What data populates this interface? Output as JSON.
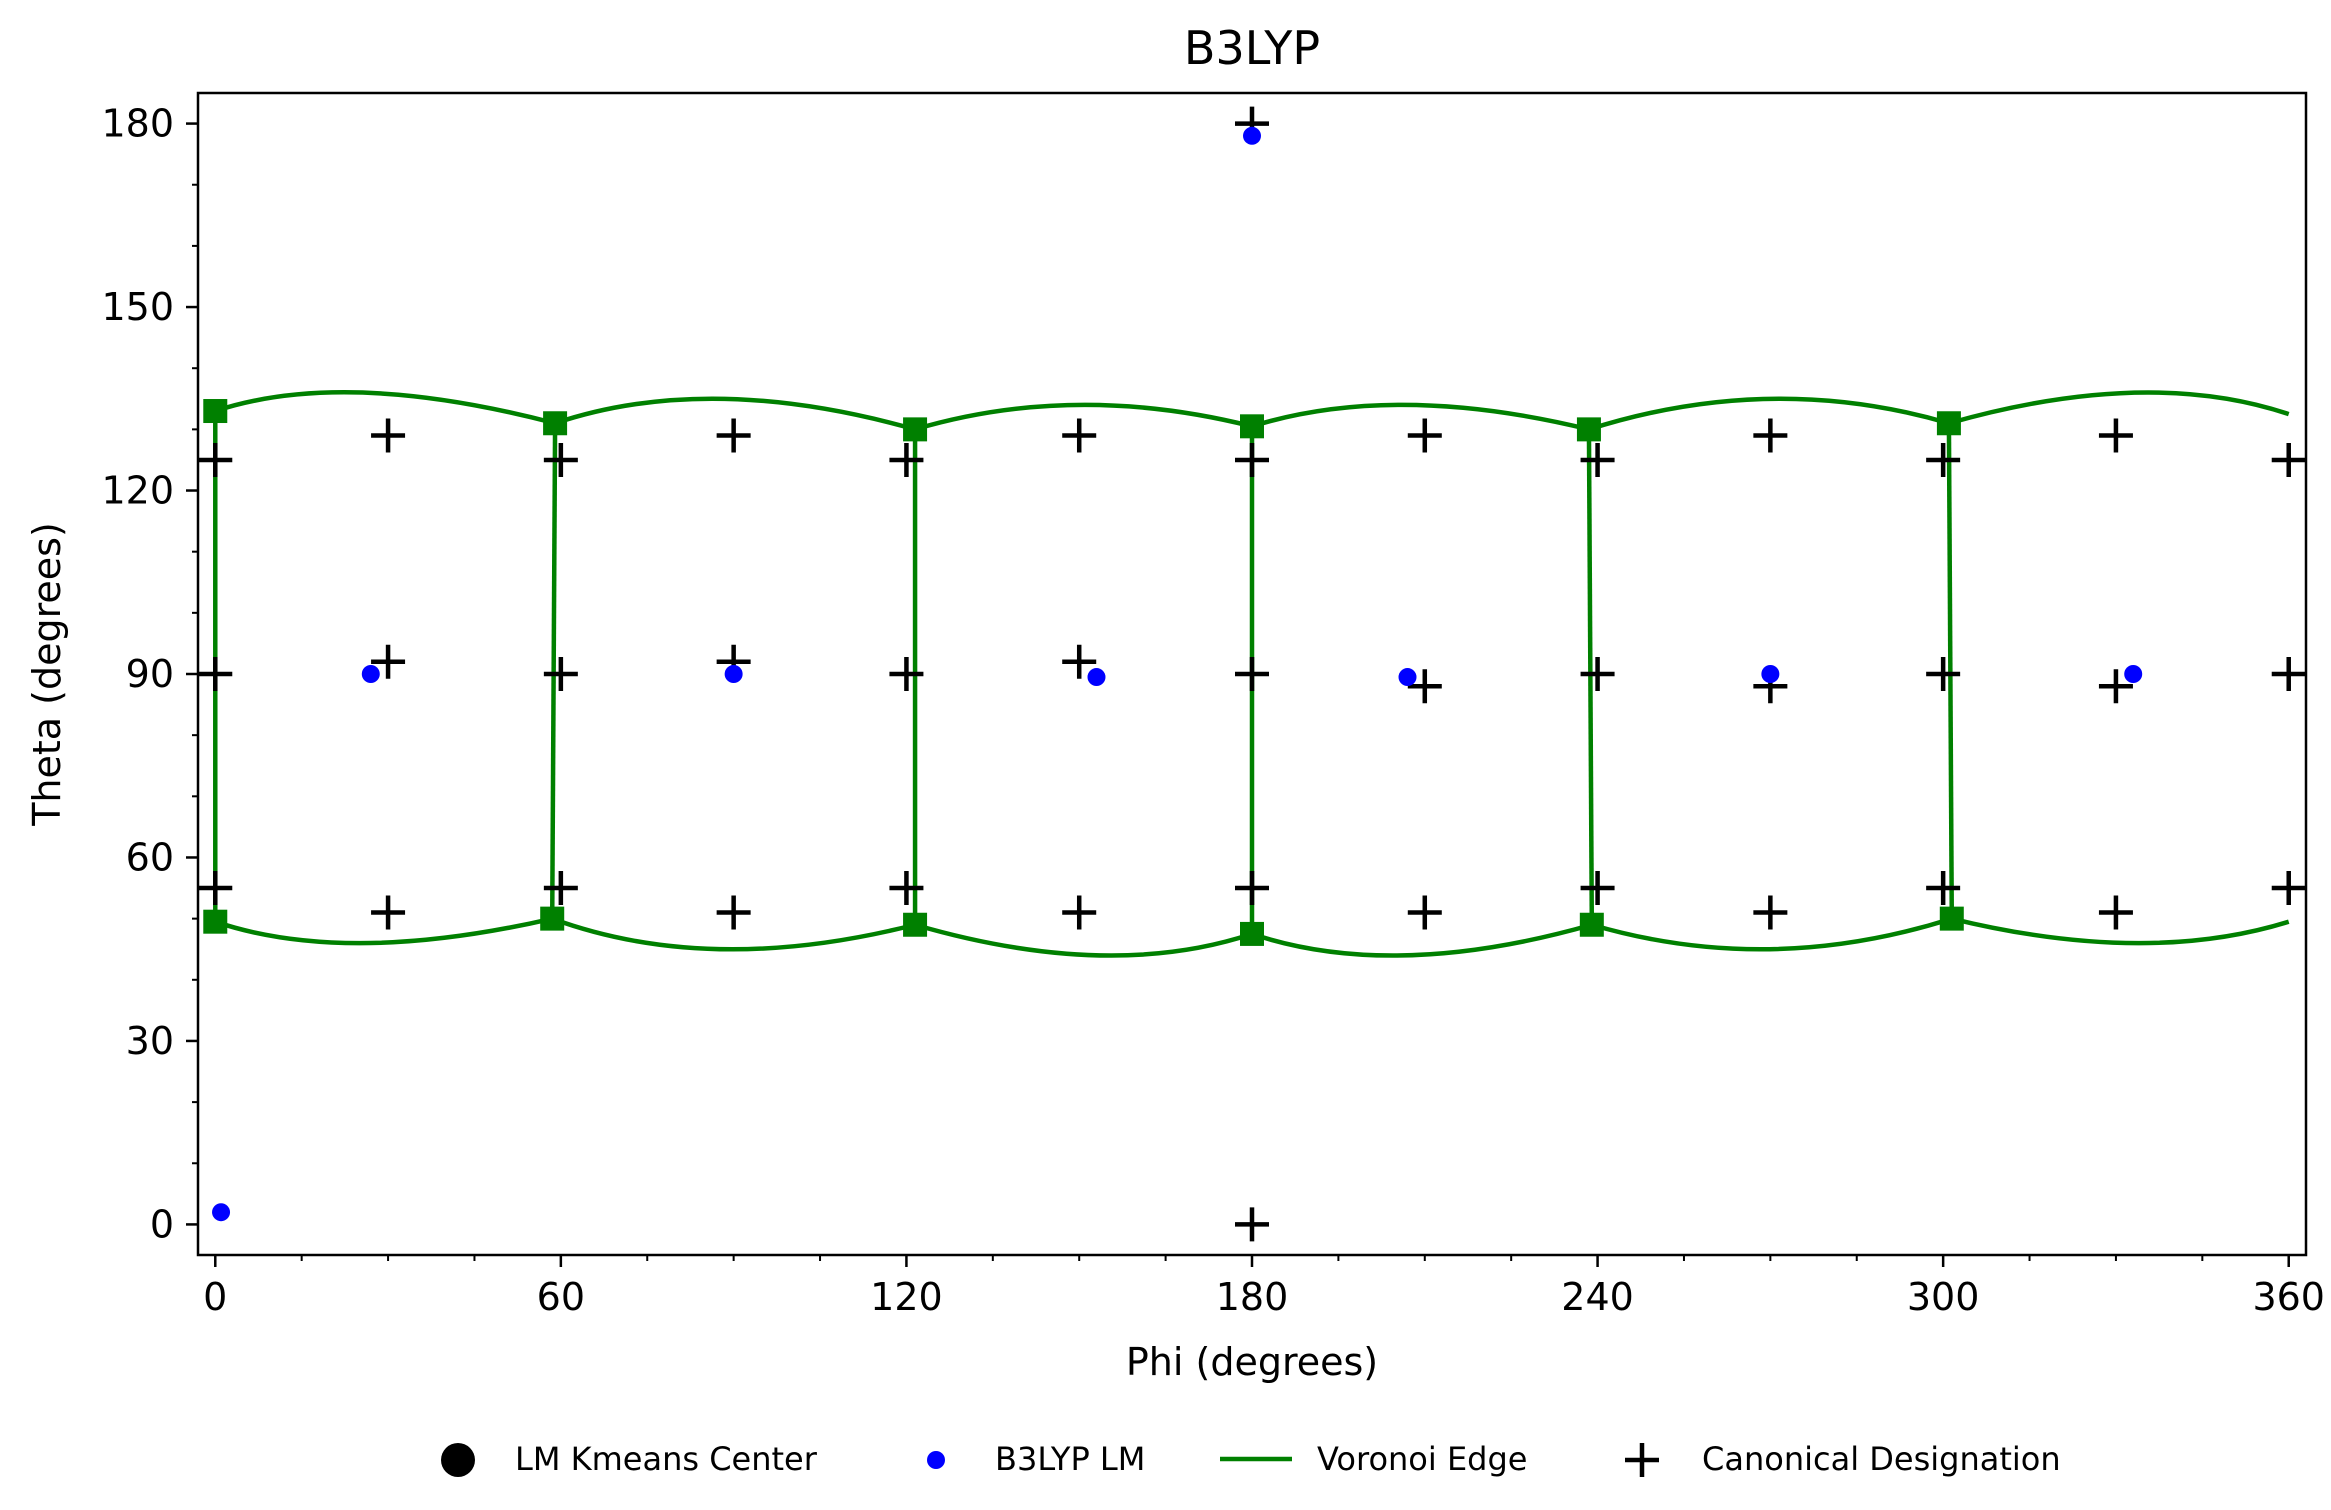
{
  "chart_data": {
    "type": "scatter",
    "title": "B3LYP",
    "xlabel": "Phi (degrees)",
    "ylabel": "Theta (degrees)",
    "xlim": [
      -3,
      363
    ],
    "ylim": [
      185,
      -5
    ],
    "y_inverted": true,
    "xticks": [
      0,
      60,
      120,
      180,
      240,
      300,
      360
    ],
    "yticks": [
      0,
      30,
      60,
      90,
      120,
      150,
      180
    ],
    "grid": false,
    "legend_position": "bottom-center",
    "legend": [
      {
        "label": "LM Kmeans Center",
        "marker": "large-circle",
        "color": "#000000"
      },
      {
        "label": "B3LYP LM",
        "marker": "small-circle",
        "color": "#0000ff"
      },
      {
        "label": "Voronoi Edge",
        "marker": "line",
        "color": "#008000"
      },
      {
        "label": "Canonical Designation",
        "marker": "plus",
        "color": "#000000"
      }
    ],
    "series": [
      {
        "name": "B3LYP LM",
        "color": "#0000ff",
        "points": [
          [
            1,
            2
          ],
          [
            27,
            90
          ],
          [
            90,
            90
          ],
          [
            153,
            89.5
          ],
          [
            207,
            89.5
          ],
          [
            270,
            90
          ],
          [
            333,
            90
          ],
          [
            180,
            178
          ]
        ]
      },
      {
        "name": "Canonical Designation",
        "color": "#000000",
        "points": [
          [
            180,
            0
          ],
          [
            30,
            51
          ],
          [
            90,
            51
          ],
          [
            150,
            51
          ],
          [
            210,
            51
          ],
          [
            270,
            51
          ],
          [
            330,
            51
          ],
          [
            0,
            55
          ],
          [
            60,
            55
          ],
          [
            120,
            55
          ],
          [
            180,
            55
          ],
          [
            240,
            55
          ],
          [
            300,
            55
          ],
          [
            360,
            55
          ],
          [
            0,
            90
          ],
          [
            60,
            90
          ],
          [
            120,
            90
          ],
          [
            180,
            90
          ],
          [
            240,
            90
          ],
          [
            300,
            90
          ],
          [
            360,
            90
          ],
          [
            30,
            92
          ],
          [
            90,
            92
          ],
          [
            150,
            92
          ],
          [
            210,
            88
          ],
          [
            270,
            88
          ],
          [
            330,
            88
          ],
          [
            0,
            125
          ],
          [
            60,
            125
          ],
          [
            120,
            125
          ],
          [
            180,
            125
          ],
          [
            240,
            125
          ],
          [
            300,
            125
          ],
          [
            360,
            125
          ],
          [
            30,
            129
          ],
          [
            90,
            129
          ],
          [
            150,
            129
          ],
          [
            210,
            129
          ],
          [
            270,
            129
          ],
          [
            330,
            129
          ],
          [
            180,
            180
          ]
        ]
      },
      {
        "name": "Voronoi Edge",
        "color": "#008000",
        "vertices": [
          [
            0,
            49.5
          ],
          [
            58.5,
            50
          ],
          [
            121.5,
            49
          ],
          [
            180,
            47.5
          ],
          [
            239,
            49
          ],
          [
            301.5,
            50
          ],
          [
            0,
            133
          ],
          [
            59,
            131
          ],
          [
            121.5,
            130
          ],
          [
            180,
            130.5
          ],
          [
            238.5,
            130
          ],
          [
            301,
            131
          ]
        ],
        "edges": [
          [
            [
              0,
              49.5
            ],
            [
              26,
              46
            ],
            [
              58.5,
              50
            ]
          ],
          [
            [
              58.5,
              50
            ],
            [
              88,
              45
            ],
            [
              121.5,
              49
            ]
          ],
          [
            [
              121.5,
              49
            ],
            [
              153,
              44
            ],
            [
              180,
              47.5
            ]
          ],
          [
            [
              180,
              47.5
            ],
            [
              207,
              44
            ],
            [
              239,
              49
            ]
          ],
          [
            [
              239,
              49
            ],
            [
              270,
              45
            ],
            [
              301.5,
              50
            ]
          ],
          [
            [
              301.5,
              50
            ],
            [
              333,
              46
            ],
            [
              360,
              49.5
            ]
          ],
          [
            [
              0,
              133
            ],
            [
              26,
              136
            ],
            [
              59,
              131
            ]
          ],
          [
            [
              59,
              131
            ],
            [
              88,
              135
            ],
            [
              121.5,
              130
            ]
          ],
          [
            [
              121.5,
              130
            ],
            [
              150,
              134
            ],
            [
              180,
              130.5
            ]
          ],
          [
            [
              180,
              130.5
            ],
            [
              207,
              134
            ],
            [
              238.5,
              130
            ]
          ],
          [
            [
              238.5,
              130
            ],
            [
              270,
              135
            ],
            [
              301,
              131
            ]
          ],
          [
            [
              301,
              131
            ],
            [
              333,
              136
            ],
            [
              360,
              132.5
            ]
          ],
          [
            [
              0,
              49.5
            ],
            [
              0,
              133
            ]
          ],
          [
            [
              58.5,
              50
            ],
            [
              59,
              131
            ]
          ],
          [
            [
              121.5,
              49
            ],
            [
              121.5,
              130
            ]
          ],
          [
            [
              180,
              47.5
            ],
            [
              180,
              130.5
            ]
          ],
          [
            [
              239,
              49
            ],
            [
              238.5,
              130
            ]
          ],
          [
            [
              301.5,
              50
            ],
            [
              301,
              131
            ]
          ]
        ]
      }
    ]
  }
}
